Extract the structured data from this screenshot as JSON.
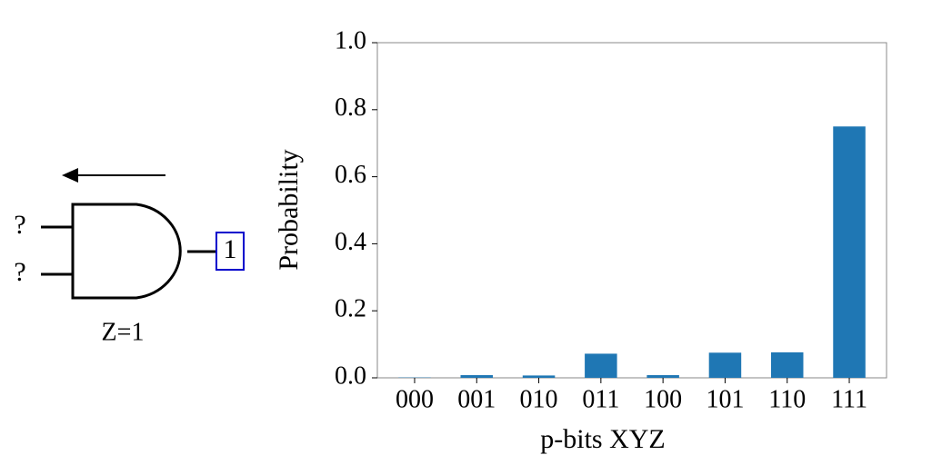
{
  "diagram": {
    "inputs": [
      "?",
      "?"
    ],
    "output": "1",
    "label": "Z=1"
  },
  "chart_data": {
    "type": "bar",
    "x_label": "p-bits XYZ",
    "y_label": "Probability",
    "categories": [
      "000",
      "001",
      "010",
      "011",
      "100",
      "101",
      "110",
      "111"
    ],
    "values": [
      0.001,
      0.008,
      0.007,
      0.072,
      0.008,
      0.075,
      0.076,
      0.75
    ],
    "color": "#1f77b4",
    "ylim": [
      0,
      1.0
    ],
    "yticks": [
      {
        "value": 0,
        "label": "0.0"
      },
      0.2,
      0.4,
      0.6,
      0.8,
      {
        "value": 1,
        "label": "1.0"
      }
    ]
  }
}
